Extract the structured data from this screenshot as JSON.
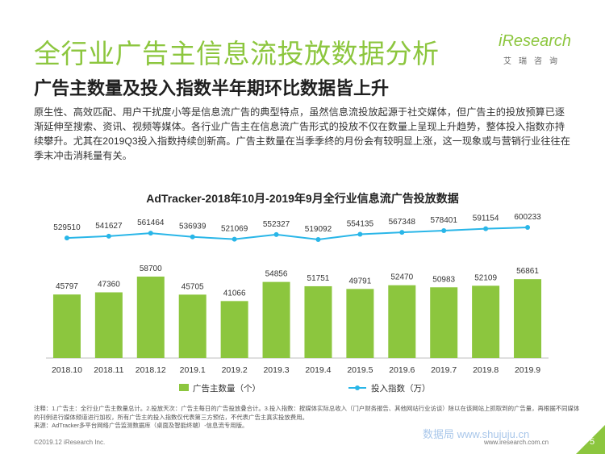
{
  "header": {
    "title": "全行业广告主信息流投放数据分析",
    "subtitle": "广告主数量及投入指数半年期环比数据皆上升",
    "description": "原生性、高效匹配、用户干扰度小等是信息流广告的典型特点，虽然信息流投放起源于社交媒体，但广告主的投放预算已逐渐延伸至搜索、资讯、视频等媒体。各行业广告主在信息流广告形式的投放不仅在数量上呈现上升趋势，整体投入指数亦持续攀升。尤其在2019Q3投入指数持续创新高。广告主数量在当季季终的月份会有较明显上涨，这一现象或与营销行业往往在季末冲击消耗量有关。"
  },
  "logo": {
    "name": "iResearch",
    "sub": "艾瑞咨询"
  },
  "chart_data": {
    "type": "bar+line",
    "title": "AdTracker-2018年10月-2019年9月全行业信息流广告投放数据",
    "categories": [
      "2018.10",
      "2018.11",
      "2018.12",
      "2019.1",
      "2019.2",
      "2019.3",
      "2019.4",
      "2019.5",
      "2019.6",
      "2019.7",
      "2019.8",
      "2019.9"
    ],
    "series": [
      {
        "name": "广告主数量（个）",
        "kind": "bar",
        "color": "#8cc63e",
        "values": [
          45797,
          47360,
          58700,
          45705,
          41066,
          54856,
          51751,
          49791,
          52470,
          50983,
          52109,
          56861
        ]
      },
      {
        "name": "投入指数（万）",
        "kind": "line",
        "color": "#29b6e8",
        "values": [
          529510,
          541627,
          561464,
          536939,
          521069,
          552327,
          519092,
          554135,
          567348,
          578401,
          591154,
          600233
        ]
      }
    ],
    "legend_position": "bottom"
  },
  "notes": {
    "line1": "注释：1.广告主：全行业广告主数量总计。2.投放天次：广告主每日的广告投放叠合计。3.投入指数：按媒体实际总收入（门户财务报告、其他网站行业访谈）除以在该网站上抓取到的广告量，再根据不同媒体的刊例进行媒体频道进行加权，所有广告主的投入指数仅代表第三方预估，不代表广告主真实投放费用。",
    "line2": "来源：AdTracker多平台网络广告监测数据库（桌面及智能终端）-信息流专用版。"
  },
  "footer": {
    "copyright": "©2019.12 iResearch Inc.",
    "website": "www.iresearch.com.cn",
    "page": "5",
    "watermark": "数据局 www.shujuju.cn"
  }
}
